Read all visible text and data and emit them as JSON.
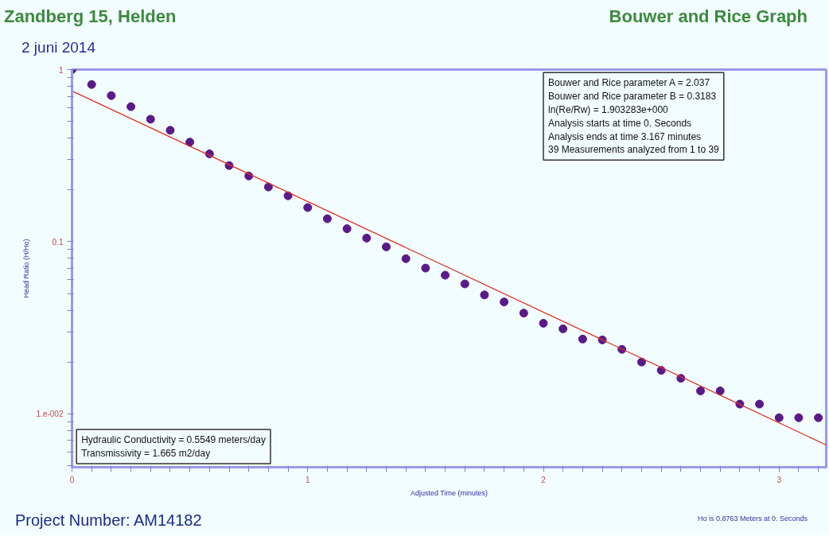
{
  "chart_data": {
    "type": "scatter",
    "title": "Zandberg 15, Helden",
    "subtitle": "2 juni 2014",
    "xlabel": "Adjusted Time (minutes)",
    "ylabel": "Head Ratio (H/Ho)",
    "annotations": [
      "Bouwer and Rice Graph",
      "Bouwer and Rice parameter A = 2.037\nBouwer and Rice parameter B = 0.3183\nln(Re/Rw) = 1.903283e+000\nAnalysis starts at time 0. Seconds\nAnalysis ends at time 3.167 minutes\n39 Measurements analyzed from 1 to 39",
      "Hydraulic Conductivity = 0.5549 meters/day\nTransmissivity = 1.665 m2/day",
      "Project Number: AM14182",
      "Ho is 0.8763 Meters at 0. Seconds"
    ],
    "log": "y",
    "grid": false,
    "xlim": [
      0,
      3.2
    ],
    "ylim": [
      0.0049,
      1
    ],
    "xticks": [
      0,
      {
        "value": 0.0833,
        "label": null
      },
      {
        "value": 0.1667,
        "label": null
      },
      {
        "value": 0.25,
        "label": null
      },
      {
        "value": 0.3333,
        "label": null
      },
      {
        "value": 0.4167,
        "label": null
      },
      {
        "value": 0.5,
        "label": null
      },
      {
        "value": 0.5833,
        "label": null
      },
      {
        "value": 0.6667,
        "label": null
      },
      {
        "value": 0.75,
        "label": null
      },
      {
        "value": 0.8333,
        "label": null
      },
      {
        "value": 0.9167,
        "label": null
      },
      1,
      {
        "value": 1.0833,
        "label": null
      },
      {
        "value": 1.1667,
        "label": null
      },
      {
        "value": 1.25,
        "label": null
      },
      {
        "value": 1.3333,
        "label": null
      },
      {
        "value": 1.4167,
        "label": null
      },
      {
        "value": 1.5,
        "label": null
      },
      {
        "value": 1.5833,
        "label": null
      },
      {
        "value": 1.6667,
        "label": null
      },
      {
        "value": 1.75,
        "label": null
      },
      {
        "value": 1.8333,
        "label": null
      },
      {
        "value": 1.9167,
        "label": null
      },
      2,
      {
        "value": 2.0833,
        "label": null
      },
      {
        "value": 2.1667,
        "label": null
      },
      {
        "value": 2.25,
        "label": null
      },
      {
        "value": 2.3333,
        "label": null
      },
      {
        "value": 2.4167,
        "label": null
      },
      {
        "value": 2.5,
        "label": null
      },
      {
        "value": 2.5833,
        "label": null
      },
      {
        "value": 2.6667,
        "label": null
      },
      {
        "value": 2.75,
        "label": null
      },
      {
        "value": 2.8333,
        "label": null
      },
      {
        "value": 2.9167,
        "label": null
      },
      3,
      {
        "value": 3.0833,
        "label": null
      },
      {
        "value": 3.1667,
        "label": null
      }
    ],
    "yticks": [
      {
        "value": 0.005,
        "label": null
      },
      {
        "value": 0.006,
        "label": null
      },
      {
        "value": 0.007,
        "label": null
      },
      {
        "value": 0.008,
        "label": null
      },
      {
        "value": 0.009,
        "label": null
      },
      {
        "value": 0.01,
        "label": "1.e-002"
      },
      {
        "value": 0.02,
        "label": null
      },
      {
        "value": 0.03,
        "label": null
      },
      {
        "value": 0.04,
        "label": null
      },
      {
        "value": 0.05,
        "label": null
      },
      {
        "value": 0.06,
        "label": null
      },
      {
        "value": 0.07,
        "label": null
      },
      {
        "value": 0.08,
        "label": null
      },
      {
        "value": 0.09,
        "label": null
      },
      0.1,
      {
        "value": 0.2,
        "label": null
      },
      {
        "value": 0.3,
        "label": null
      },
      {
        "value": 0.4,
        "label": null
      },
      {
        "value": 0.5,
        "label": null
      },
      {
        "value": 0.6,
        "label": null
      },
      {
        "value": 0.7,
        "label": null
      },
      {
        "value": 0.8,
        "label": null
      },
      {
        "value": 0.9,
        "label": null
      },
      1
    ],
    "x": [
      0,
      0.0833,
      0.1667,
      0.25,
      0.3333,
      0.4167,
      0.5,
      0.5833,
      0.6667,
      0.75,
      0.8333,
      0.9167,
      1,
      1.0833,
      1.1667,
      1.25,
      1.3333,
      1.4167,
      1.5,
      1.5833,
      1.6667,
      1.75,
      1.8333,
      1.9167,
      2,
      2.0833,
      2.1667,
      2.25,
      2.3333,
      2.4167,
      2.5,
      2.5833,
      2.6667,
      2.75,
      2.8333,
      2.9167,
      3,
      3.0833,
      3.1667
    ],
    "series": [
      {
        "marker": "circle",
        "color": "#5a1a8a",
        "values": [
          1.0,
          0.819,
          0.706,
          0.609,
          0.515,
          0.444,
          0.379,
          0.324,
          0.277,
          0.241,
          0.208,
          0.185,
          0.158,
          0.136,
          0.119,
          0.105,
          0.0934,
          0.0797,
          0.0703,
          0.0639,
          0.0569,
          0.0491,
          0.0447,
          0.0385,
          0.0336,
          0.0312,
          0.0272,
          0.0269,
          0.0237,
          0.02,
          0.0179,
          0.0161,
          0.0136,
          0.0136,
          0.0114,
          0.0114,
          0.0095,
          0.0095,
          0.0095
        ]
      },
      {
        "type": "line",
        "marker": "none",
        "color": "#e03020",
        "x": [
          0,
          3.2
        ],
        "values": [
          0.752,
          0.0066
        ]
      }
    ]
  }
}
